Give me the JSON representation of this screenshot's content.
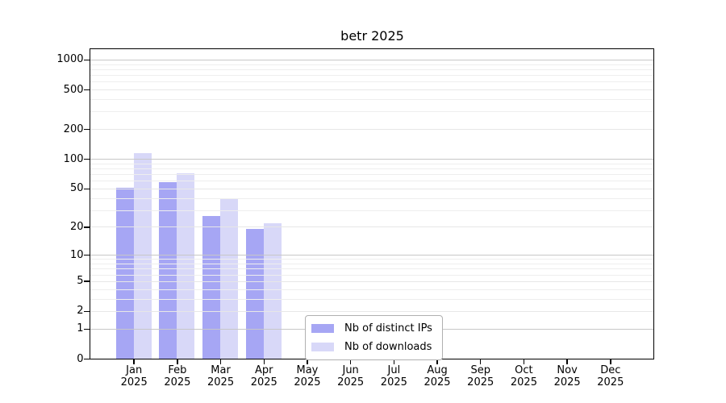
{
  "title": "betr 2025",
  "colors": {
    "bar_distinct_ips": "#a6a6f4",
    "bar_downloads": "#d8d8f8",
    "grid_decade": "#c7c7c7",
    "grid_major": "#e7e7e7",
    "grid_minor": "#eeeeee",
    "axis": "#000000",
    "legend_border": "#b0b0b0",
    "background": "#ffffff"
  },
  "chart_data": {
    "type": "bar",
    "title": "betr 2025",
    "categories": [
      "Jan 2025",
      "Feb 2025",
      "Mar 2025",
      "Apr 2025",
      "May 2025",
      "Jun 2025",
      "Jul 2025",
      "Aug 2025",
      "Sep 2025",
      "Oct 2025",
      "Nov 2025",
      "Dec 2025"
    ],
    "x_tick_months": [
      "Jan",
      "Feb",
      "Mar",
      "Apr",
      "May",
      "Jun",
      "Jul",
      "Aug",
      "Sep",
      "Oct",
      "Nov",
      "Dec"
    ],
    "x_tick_year": "2025",
    "series": [
      {
        "name": "Nb of distinct IPs",
        "color": "#a6a6f4",
        "values": [
          51,
          58,
          26,
          19,
          0,
          0,
          0,
          0,
          0,
          0,
          0,
          0
        ]
      },
      {
        "name": "Nb of downloads",
        "color": "#d8d8f8",
        "values": [
          115,
          71,
          40,
          22,
          0,
          0,
          0,
          0,
          0,
          0,
          0,
          0
        ]
      }
    ],
    "xlabel": "",
    "ylabel": "",
    "y_scale": "log10(1+x)",
    "ylim": [
      0,
      1270
    ],
    "y_ticks": [
      0,
      1,
      2,
      5,
      10,
      20,
      50,
      100,
      200,
      500,
      1000
    ],
    "y_minor_gridlines": [
      3,
      4,
      6,
      7,
      8,
      9,
      30,
      40,
      60,
      70,
      80,
      90,
      300,
      400,
      600,
      700,
      800,
      900
    ],
    "y_decade_gridlines": [
      1,
      10,
      100,
      1000
    ],
    "grid": true,
    "legend_position": "bottom-center"
  }
}
